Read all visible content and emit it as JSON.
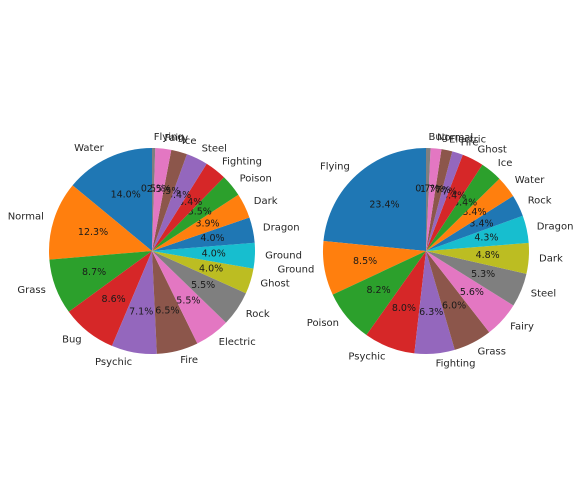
{
  "chart_data": [
    {
      "type": "pie",
      "start_angle_deg": 90,
      "direction": "counterclockwise",
      "categories": [
        "Water",
        "Normal",
        "Grass",
        "Bug",
        "Psychic",
        "Fire",
        "Electric",
        "Rock",
        "Ghost",
        "Ground",
        "Dragon",
        "Dark",
        "Poison",
        "Fighting",
        "Steel",
        "Ice",
        "Fairy",
        "Flying"
      ],
      "values": [
        14.0,
        12.3,
        8.7,
        8.6,
        7.1,
        6.5,
        5.5,
        5.5,
        4.0,
        4.0,
        4.0,
        3.9,
        3.5,
        3.4,
        3.4,
        2.5,
        2.5,
        0.5
      ],
      "labels_pct": [
        "14.0%",
        "12.3%",
        "8.7%",
        "8.6%",
        "7.1%",
        "6.5%",
        "5.5%",
        "5.5%",
        "4.0%",
        "4.0%",
        "4.0%",
        "3.9%",
        "3.5%",
        "3.4%",
        "3.4%",
        "2.5%",
        "2.5%",
        "0.5%"
      ],
      "colors": [
        "#1f77b4",
        "#ff7f0e",
        "#2ca02c",
        "#d62728",
        "#9467bd",
        "#8c564b",
        "#e377c2",
        "#7f7f7f",
        "#bcbd22",
        "#17becf",
        "#1f77b4",
        "#ff7f0e",
        "#2ca02c",
        "#d62728",
        "#9467bd",
        "#8c564b",
        "#e377c2",
        "#7f7f7f"
      ]
    },
    {
      "type": "pie",
      "start_angle_deg": 90,
      "direction": "counterclockwise",
      "categories": [
        "Flying",
        "Ground",
        "Poison",
        "Psychic",
        "Fighting",
        "Grass",
        "Fairy",
        "Steel",
        "Dark",
        "Dragon",
        "Rock",
        "Water",
        "Ice",
        "Ghost",
        "Fire",
        "Electric",
        "Normal",
        "Bug"
      ],
      "values": [
        23.4,
        8.5,
        8.2,
        8.0,
        6.3,
        6.0,
        5.6,
        5.3,
        4.8,
        4.3,
        3.4,
        3.4,
        3.4,
        3.4,
        1.7,
        1.7,
        1.7,
        0.7
      ],
      "labels_pct": [
        "23.4%",
        "8.5%",
        "8.2%",
        "8.0%",
        "6.3%",
        "6.0%",
        "5.6%",
        "5.3%",
        "4.8%",
        "4.3%",
        "3.4%",
        "3.4%",
        "3.4%",
        "3.4%",
        "1.7%",
        "1.7%",
        "1.7%",
        "0.7%"
      ],
      "colors": [
        "#1f77b4",
        "#ff7f0e",
        "#2ca02c",
        "#d62728",
        "#9467bd",
        "#8c564b",
        "#e377c2",
        "#7f7f7f",
        "#bcbd22",
        "#17becf",
        "#1f77b4",
        "#ff7f0e",
        "#2ca02c",
        "#d62728",
        "#9467bd",
        "#8c564b",
        "#e377c2",
        "#7f7f7f"
      ]
    }
  ]
}
